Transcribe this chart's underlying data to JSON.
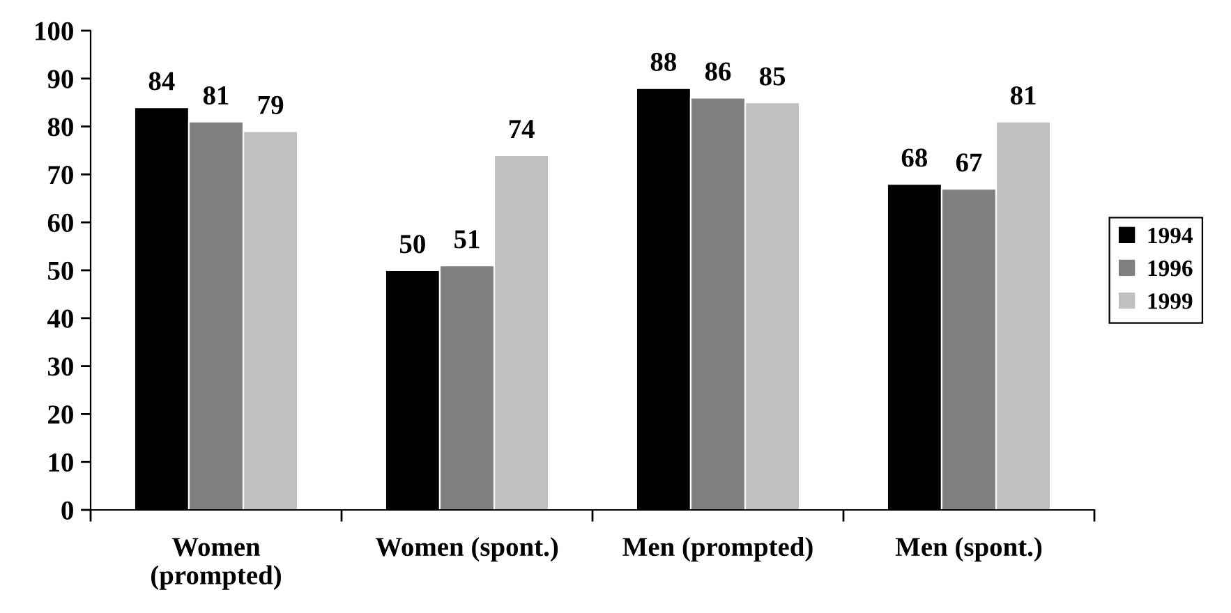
{
  "chart_data": {
    "type": "bar",
    "categories": [
      "Women\n(prompted)",
      "Women (spont.)",
      "Men (prompted)",
      "Men (spont.)"
    ],
    "series": [
      {
        "name": "1994",
        "color": "#000000",
        "values": [
          84,
          50,
          88,
          68
        ]
      },
      {
        "name": "1996",
        "color": "#808080",
        "values": [
          81,
          51,
          86,
          67
        ]
      },
      {
        "name": "1999",
        "color": "#c0c0c0",
        "values": [
          79,
          74,
          85,
          81
        ]
      }
    ],
    "ylim": [
      0,
      100
    ],
    "yticks": [
      0,
      10,
      20,
      30,
      40,
      50,
      60,
      70,
      80,
      90,
      100
    ],
    "data_labels": true,
    "grid": false,
    "legend": "right"
  }
}
